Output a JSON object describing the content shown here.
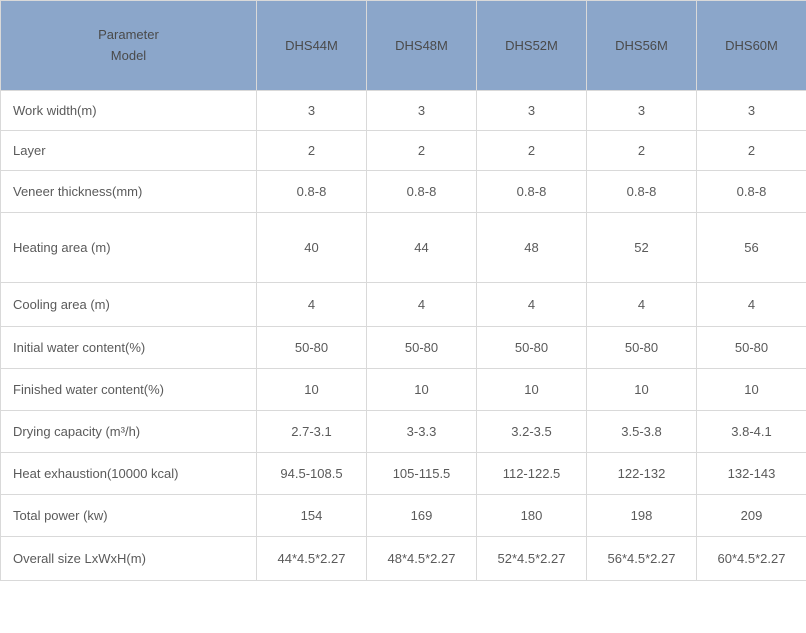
{
  "table": {
    "header_bg": "#8ba6ca",
    "border_color": "#d9d9d9",
    "text_color": "#5a5a5a",
    "font_size_pt": 10,
    "header": {
      "param_line1": "Parameter",
      "param_line2": "Model",
      "models": [
        "DHS44M",
        "DHS48M",
        "DHS52M",
        "DHS56M",
        "DHS60M"
      ]
    },
    "rows": [
      {
        "label": "Work width(m)",
        "values": [
          "3",
          "3",
          "3",
          "3",
          "3"
        ],
        "h": "row-h40"
      },
      {
        "label": "Layer",
        "values": [
          "2",
          "2",
          "2",
          "2",
          "2"
        ],
        "h": "row-h40"
      },
      {
        "label": "Veneer  thickness(mm)",
        "values": [
          "0.8-8",
          "0.8-8",
          "0.8-8",
          "0.8-8",
          "0.8-8"
        ],
        "h": "row-h42"
      },
      {
        "label": "Heating area (m)",
        "values": [
          "40",
          "44",
          "48",
          "52",
          "56"
        ],
        "h": "row-h70"
      },
      {
        "label": "Cooling area (m)",
        "values": [
          "4",
          "4",
          "4",
          "4",
          "4"
        ],
        "h": "row-h44"
      },
      {
        "label": "Initial water content(%)",
        "values": [
          "50-80",
          "50-80",
          "50-80",
          "50-80",
          "50-80"
        ],
        "h": "row-h42"
      },
      {
        "label": "Finished water content(%)",
        "values": [
          "10",
          "10",
          "10",
          "10",
          "10"
        ],
        "h": "row-h42"
      },
      {
        "label": "Drying capacity (m³/h)",
        "values": [
          "2.7-3.1",
          "3-3.3",
          "3.2-3.5",
          "3.5-3.8",
          "3.8-4.1"
        ],
        "h": "row-h42"
      },
      {
        "label": "Heat exhaustion(10000 kcal)",
        "values": [
          "94.5-108.5",
          "105-115.5",
          "112-122.5",
          "122-132",
          "132-143"
        ],
        "h": "row-h42"
      },
      {
        "label": "Total power (kw)",
        "values": [
          "154",
          "169",
          "180",
          "198",
          "209"
        ],
        "h": "row-h42"
      },
      {
        "label": "Overall size LxWxH(m)",
        "values": [
          "44*4.5*2.27",
          "48*4.5*2.27",
          "52*4.5*2.27",
          "56*4.5*2.27",
          "60*4.5*2.27"
        ],
        "h": "row-h44"
      }
    ]
  }
}
